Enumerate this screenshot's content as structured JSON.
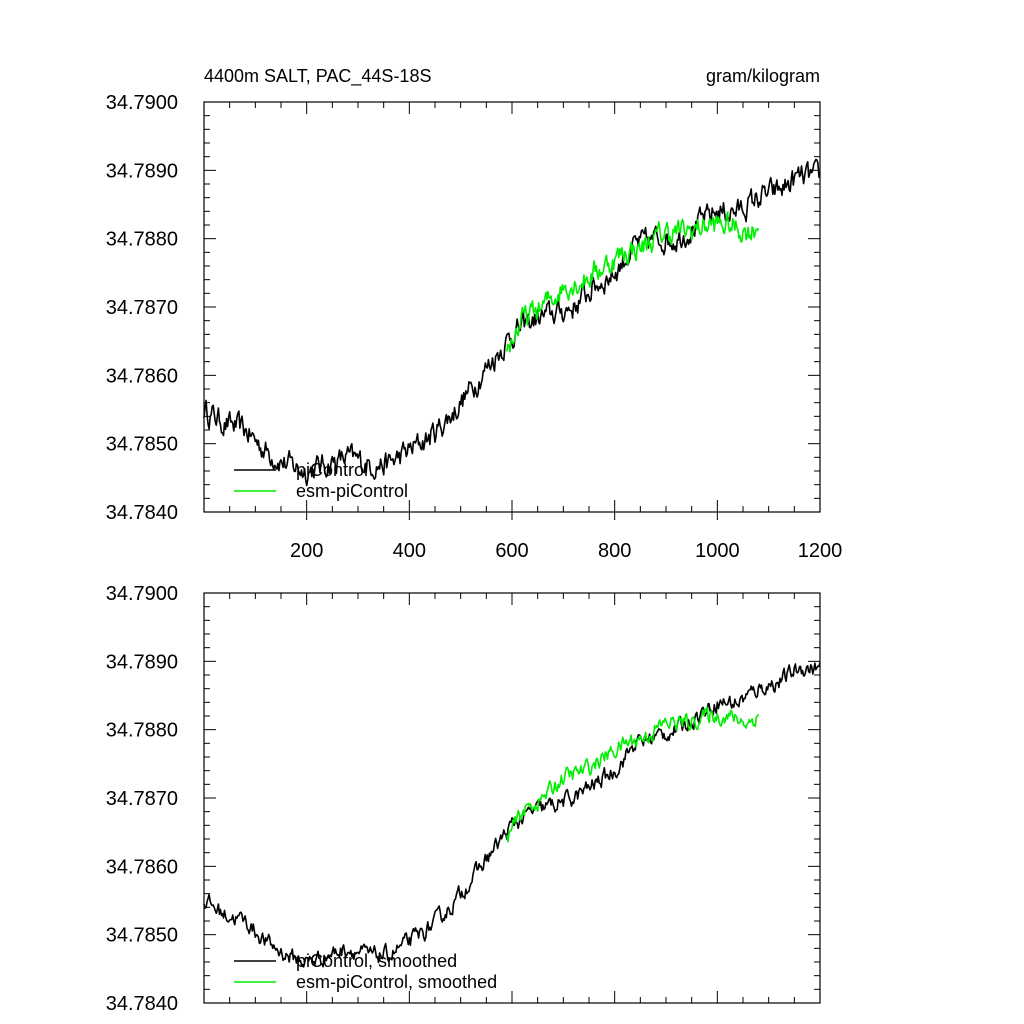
{
  "header": {
    "title": "4400m SALT, PAC_44S-18S",
    "units": "gram/kilogram"
  },
  "chart_data": [
    {
      "type": "line",
      "name": "raw",
      "xlim": [
        0,
        1200
      ],
      "ylim": [
        34.784,
        34.79
      ],
      "xticks": [
        200,
        400,
        600,
        800,
        1000,
        1200
      ],
      "xtick_labels": [
        "200",
        "400",
        "600",
        "800",
        "1000",
        "1200"
      ],
      "yticks": [
        34.784,
        34.785,
        34.786,
        34.787,
        34.788,
        34.789,
        34.79
      ],
      "ytick_labels": [
        "34.7840",
        "34.7850",
        "34.7860",
        "34.7870",
        "34.7880",
        "34.7890",
        "34.7900"
      ],
      "legend": {
        "position": "bottom-left",
        "entries": [
          "piControl",
          "esm-piControl"
        ]
      },
      "series": [
        {
          "name": "piControl",
          "color": "#000000",
          "noise": 0.0003,
          "x": [
            0,
            40,
            80,
            120,
            160,
            200,
            240,
            280,
            320,
            360,
            400,
            440,
            480,
            520,
            560,
            600,
            640,
            680,
            720,
            760,
            800,
            840,
            880,
            920,
            960,
            1000,
            1040,
            1080,
            1120,
            1160,
            1200
          ],
          "y": [
            34.7855,
            34.7853,
            34.7852,
            34.7849,
            34.7847,
            34.7846,
            34.7847,
            34.7848,
            34.7847,
            34.7847,
            34.7849,
            34.7851,
            34.7854,
            34.7858,
            34.7862,
            34.7866,
            34.7868,
            34.7869,
            34.787,
            34.7873,
            34.7875,
            34.7879,
            34.788,
            34.788,
            34.7882,
            34.7884,
            34.7884,
            34.7886,
            34.7887,
            34.7889,
            34.7889
          ]
        },
        {
          "name": "esm-piControl",
          "color": "#00ee00",
          "noise": 0.0003,
          "x": [
            590,
            620,
            660,
            700,
            740,
            780,
            820,
            860,
            900,
            940,
            980,
            1020,
            1060,
            1080
          ],
          "y": [
            34.7864,
            34.7868,
            34.787,
            34.7873,
            34.7874,
            34.7876,
            34.7878,
            34.7879,
            34.7881,
            34.7881,
            34.7882,
            34.7882,
            34.7881,
            34.7882
          ]
        }
      ]
    },
    {
      "type": "line",
      "name": "smoothed",
      "xlim": [
        0,
        1200
      ],
      "ylim": [
        34.784,
        34.79
      ],
      "xticks": [
        200,
        400,
        600,
        800,
        1000,
        1200
      ],
      "yticks": [
        34.784,
        34.785,
        34.786,
        34.787,
        34.788,
        34.789,
        34.79
      ],
      "ytick_labels": [
        "34.7840",
        "34.7850",
        "34.7860",
        "34.7870",
        "34.7880",
        "34.7890",
        "34.7900"
      ],
      "legend": {
        "position": "bottom-left",
        "entries": [
          "piControl, smoothed",
          "esm-piControl, smoothed"
        ]
      },
      "series": [
        {
          "name": "piControl, smoothed",
          "color": "#000000",
          "noise": 0.0002,
          "x": [
            0,
            40,
            80,
            120,
            160,
            200,
            240,
            280,
            320,
            360,
            400,
            440,
            480,
            520,
            560,
            600,
            640,
            680,
            720,
            760,
            800,
            840,
            880,
            920,
            960,
            1000,
            1040,
            1080,
            1120,
            1160,
            1200
          ],
          "y": [
            34.7855,
            34.7853,
            34.7852,
            34.7849,
            34.7847,
            34.7846,
            34.7847,
            34.7848,
            34.7847,
            34.7847,
            34.7849,
            34.7851,
            34.7854,
            34.7858,
            34.7862,
            34.7866,
            34.7868,
            34.7869,
            34.787,
            34.7872,
            34.7874,
            34.7878,
            34.7879,
            34.788,
            34.7882,
            34.7884,
            34.7884,
            34.7886,
            34.7887,
            34.7889,
            34.7889
          ]
        },
        {
          "name": "esm-piControl, smoothed",
          "color": "#00ee00",
          "noise": 0.0002,
          "x": [
            590,
            620,
            660,
            700,
            740,
            780,
            820,
            860,
            900,
            940,
            980,
            1020,
            1060,
            1080
          ],
          "y": [
            34.7864,
            34.7868,
            34.787,
            34.7873,
            34.7874,
            34.7876,
            34.7878,
            34.7879,
            34.7881,
            34.7881,
            34.7882,
            34.7882,
            34.7881,
            34.7882
          ]
        }
      ]
    }
  ]
}
